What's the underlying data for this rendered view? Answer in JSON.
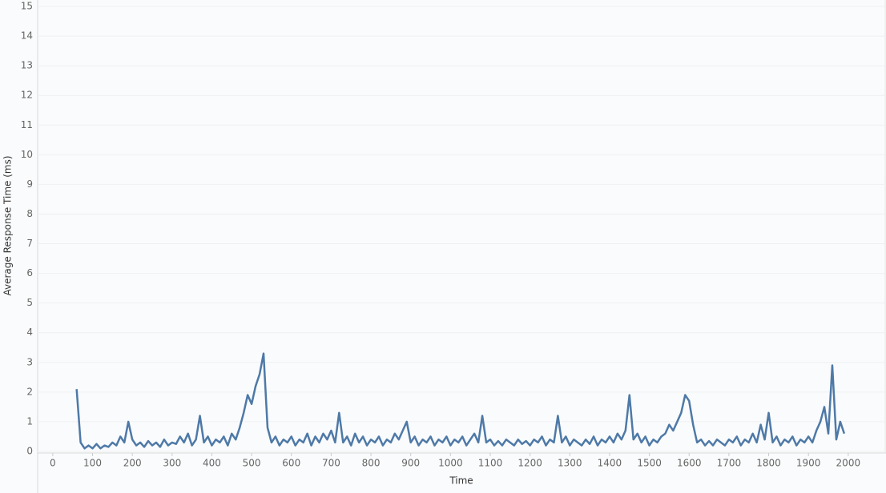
{
  "chart_data": {
    "type": "line",
    "xlabel": "Time",
    "ylabel": "Average Response Time (ms)",
    "x": [
      60,
      70,
      80,
      90,
      100,
      110,
      120,
      130,
      140,
      150,
      160,
      170,
      180,
      190,
      200,
      210,
      220,
      230,
      240,
      250,
      260,
      270,
      280,
      290,
      300,
      310,
      320,
      330,
      340,
      350,
      360,
      370,
      380,
      390,
      400,
      410,
      420,
      430,
      440,
      450,
      460,
      470,
      480,
      490,
      500,
      510,
      520,
      530,
      540,
      550,
      560,
      570,
      580,
      590,
      600,
      610,
      620,
      630,
      640,
      650,
      660,
      670,
      680,
      690,
      700,
      710,
      720,
      730,
      740,
      750,
      760,
      770,
      780,
      790,
      800,
      810,
      820,
      830,
      840,
      850,
      860,
      870,
      880,
      890,
      900,
      910,
      920,
      930,
      940,
      950,
      960,
      970,
      980,
      990,
      1000,
      1010,
      1020,
      1030,
      1040,
      1050,
      1060,
      1070,
      1080,
      1090,
      1100,
      1110,
      1120,
      1130,
      1140,
      1150,
      1160,
      1170,
      1180,
      1190,
      1200,
      1210,
      1220,
      1230,
      1240,
      1250,
      1260,
      1270,
      1280,
      1290,
      1300,
      1310,
      1320,
      1330,
      1340,
      1350,
      1360,
      1370,
      1380,
      1390,
      1400,
      1410,
      1420,
      1430,
      1440,
      1450,
      1460,
      1470,
      1480,
      1490,
      1500,
      1510,
      1520,
      1530,
      1540,
      1550,
      1560,
      1570,
      1580,
      1590,
      1600,
      1610,
      1620,
      1630,
      1640,
      1650,
      1660,
      1670,
      1680,
      1690,
      1700,
      1710,
      1720,
      1730,
      1740,
      1750,
      1760,
      1770,
      1780,
      1790,
      1800,
      1810,
      1820,
      1830,
      1840,
      1850,
      1860,
      1870,
      1880,
      1890,
      1900,
      1910,
      1920,
      1930,
      1940,
      1950,
      1960,
      1970,
      1980,
      1990
    ],
    "series": [
      {
        "name": "Average Response Time",
        "color": "#4e79a7",
        "values": [
          2.1,
          0.3,
          0.1,
          0.2,
          0.1,
          0.25,
          0.1,
          0.2,
          0.15,
          0.3,
          0.2,
          0.5,
          0.3,
          1.0,
          0.4,
          0.2,
          0.3,
          0.15,
          0.35,
          0.2,
          0.3,
          0.15,
          0.4,
          0.2,
          0.3,
          0.25,
          0.5,
          0.3,
          0.6,
          0.2,
          0.4,
          1.2,
          0.3,
          0.5,
          0.2,
          0.4,
          0.3,
          0.5,
          0.2,
          0.6,
          0.4,
          0.8,
          1.3,
          1.9,
          1.6,
          2.2,
          2.6,
          3.3,
          0.8,
          0.3,
          0.5,
          0.2,
          0.4,
          0.3,
          0.5,
          0.2,
          0.4,
          0.3,
          0.6,
          0.2,
          0.5,
          0.3,
          0.6,
          0.4,
          0.7,
          0.3,
          1.3,
          0.3,
          0.5,
          0.2,
          0.6,
          0.3,
          0.5,
          0.2,
          0.4,
          0.3,
          0.5,
          0.2,
          0.4,
          0.3,
          0.6,
          0.4,
          0.7,
          1.0,
          0.3,
          0.5,
          0.2,
          0.4,
          0.3,
          0.5,
          0.2,
          0.4,
          0.3,
          0.5,
          0.2,
          0.4,
          0.3,
          0.5,
          0.2,
          0.4,
          0.6,
          0.3,
          1.2,
          0.3,
          0.4,
          0.2,
          0.35,
          0.2,
          0.4,
          0.3,
          0.2,
          0.4,
          0.25,
          0.35,
          0.2,
          0.4,
          0.3,
          0.5,
          0.2,
          0.4,
          0.3,
          1.2,
          0.3,
          0.5,
          0.2,
          0.4,
          0.3,
          0.2,
          0.4,
          0.25,
          0.5,
          0.2,
          0.4,
          0.3,
          0.5,
          0.3,
          0.6,
          0.4,
          0.7,
          1.9,
          0.4,
          0.6,
          0.3,
          0.5,
          0.2,
          0.4,
          0.3,
          0.5,
          0.6,
          0.9,
          0.7,
          1.0,
          1.3,
          1.9,
          1.7,
          0.9,
          0.3,
          0.4,
          0.2,
          0.35,
          0.2,
          0.4,
          0.3,
          0.2,
          0.4,
          0.3,
          0.5,
          0.2,
          0.4,
          0.3,
          0.6,
          0.3,
          0.9,
          0.4,
          1.3,
          0.3,
          0.5,
          0.2,
          0.4,
          0.3,
          0.5,
          0.2,
          0.4,
          0.3,
          0.5,
          0.3,
          0.7,
          1.0,
          1.5,
          0.6,
          2.9,
          0.4,
          1.0,
          0.6
        ]
      }
    ],
    "xlim": [
      -38,
      2095
    ],
    "xticks": [
      0,
      100,
      200,
      300,
      400,
      500,
      600,
      700,
      800,
      900,
      1000,
      1100,
      1200,
      1300,
      1400,
      1500,
      1600,
      1700,
      1800,
      1900,
      2000
    ],
    "ylim": [
      0,
      15
    ],
    "yticks": [
      0,
      1,
      2,
      3,
      4,
      5,
      6,
      7,
      8,
      9,
      10,
      11,
      12,
      13,
      14,
      15
    ],
    "grid": true
  }
}
